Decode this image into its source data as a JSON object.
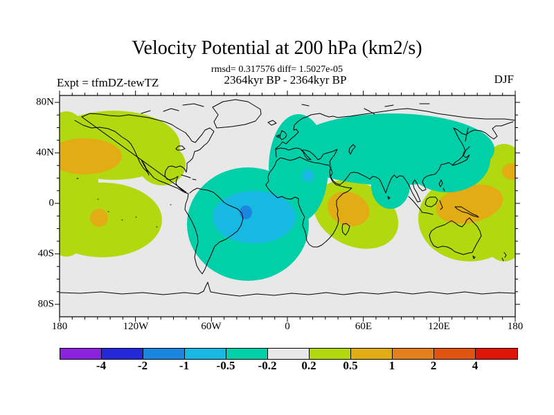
{
  "title": "Velocity Potential at 200 hPa (km2/s)",
  "stats_line": "rmsd= 0.317576 diff= 1.5027e-05",
  "period_line": "2364kyr BP - 2364kyr BP",
  "experiment_label": "Expt = tfmDZ-tewTZ",
  "season_label": "DJF",
  "axes": {
    "lat_ticks": [
      "80N",
      "40N",
      "0",
      "40S",
      "80S"
    ],
    "lon_ticks": [
      "180",
      "120W",
      "60W",
      "0",
      "60E",
      "120E",
      "180"
    ]
  },
  "colorbar": {
    "labels": [
      "-4",
      "-2",
      "-1",
      "-0.5",
      "-0.2",
      "0.2",
      "0.5",
      "1",
      "2",
      "4"
    ],
    "segment_colors": [
      "#8B22DD",
      "#2329D8",
      "#1B86DF",
      "#17B9E2",
      "#00CFA8",
      "#E8E8E8",
      "#B2D80F",
      "#E2AC14",
      "#E3801C",
      "#E0540F",
      "#E01505"
    ]
  },
  "colors": {
    "page_background": "#ffffff",
    "map_background": "#E8E8E8",
    "coastline": "#000000",
    "negative_band_light": "#00CFA8",
    "negative_band_mid": "#17B9E2",
    "negative_band_strong": "#1B86DF",
    "positive_band_light": "#B2D80F",
    "positive_band_mid": "#E2AC14"
  },
  "chart_data": {
    "type": "heatmap",
    "subtype": "filled_contour_world_map",
    "title": "Velocity Potential at 200 hPa (km2/s)",
    "units": "km2/s",
    "season": "DJF",
    "experiment": "tfmDZ-tewTZ",
    "comparison": "2364kyr BP - 2364kyr BP",
    "rmsd": 0.317576,
    "diff": 1.5027e-05,
    "projection": "equirectangular",
    "lon_axis": {
      "min": -180,
      "max": 180,
      "labeled_every_deg": 60,
      "minor_tick_deg": 10
    },
    "lat_axis": {
      "min": -90,
      "max": 90,
      "labeled_every_deg": 40,
      "minor_tick_deg": 10
    },
    "contour_levels": [
      -4,
      -2,
      -1,
      -0.5,
      -0.2,
      0.2,
      0.5,
      1,
      2,
      4
    ],
    "regions": [
      {
        "band": "-0.2 to 0.2",
        "description": "background (near zero) over polar latitudes, central North America, central Pacific gap and Australia"
      },
      {
        "band": "-0.5 to -0.2",
        "description": "one broad connected region: eastern South America / South Atlantic, up across West Africa and Europe, and across most of Asia to Japan (about 40E-150E, 70N-10N; Atlantic lobe to 60S)"
      },
      {
        "band": "-1 to -0.5",
        "description": "core over eastern Brazil and the tropical Atlantic to the Gulf of Guinea; small spot over the Sahara (~13E, 22N)"
      },
      {
        "band": "-2 to -1",
        "description": "small core near northeast Brazil (~45W, 8S)"
      },
      {
        "band": "0.2 to 0.5",
        "description": "North/tropical Pacific wrapping the dateline (60N-45S) including Mexico; southern Africa and west Indian Ocean; Maritime Continent / west Pacific"
      },
      {
        "band": "0.5 to 1",
        "description": "cores over the northeast Pacific (~150W, 40N), a small south Pacific spot (~143W, 12S), East Africa (~40E, 5S), and the Philippines / west Pacific (~130E, 5N)"
      }
    ]
  }
}
